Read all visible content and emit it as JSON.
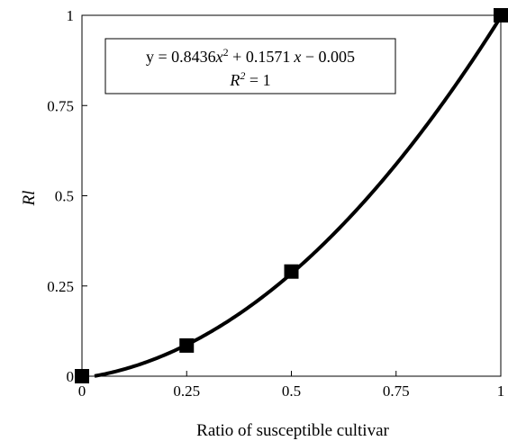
{
  "chart_data": {
    "type": "scatter",
    "xlabel": "Ratio of susceptible cultivar",
    "ylabel": "Rl",
    "xlim": [
      0,
      1
    ],
    "ylim": [
      0,
      1
    ],
    "x_ticks": [
      "0",
      "0.25",
      "0.5",
      "0.75",
      "1"
    ],
    "y_ticks": [
      "0",
      "0.25",
      "0.5",
      "0.75",
      "1"
    ],
    "grid": false,
    "legend": "none",
    "series": [
      {
        "marker": "square",
        "color": "#000000",
        "points": [
          {
            "x": 0,
            "y": 0
          },
          {
            "x": 0.25,
            "y": 0.085
          },
          {
            "x": 0.5,
            "y": 0.29
          },
          {
            "x": 1,
            "y": 1
          }
        ]
      }
    ],
    "trendline": {
      "type": "polynomial",
      "coefficients": [
        0.8436,
        0.1571,
        -0.005
      ],
      "color": "#000000"
    },
    "annotation": {
      "equation": {
        "prefix": "y = 0.8436",
        "var1": "x",
        "exp": "2",
        "middle": " + 0.1571",
        "var2": "x",
        "suffix": " − 0.005"
      },
      "r2": {
        "symbol": "R",
        "exp": "2",
        "rest": " = 1"
      }
    }
  }
}
